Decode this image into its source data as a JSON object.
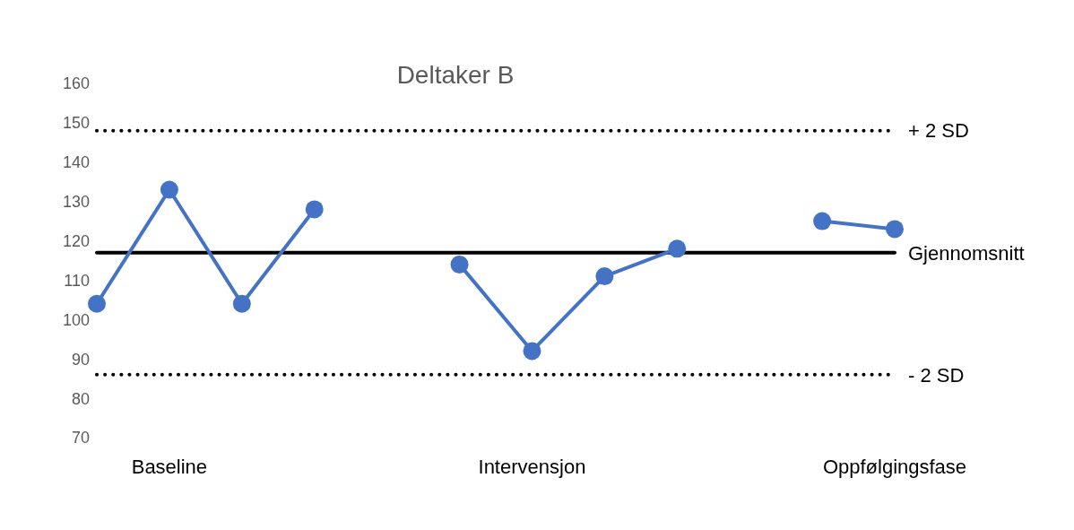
{
  "chart_data": {
    "type": "line",
    "title": "Deltaker B",
    "categories": [
      null,
      "Baseline",
      null,
      null,
      null,
      null,
      "Intervensjon",
      null,
      null,
      null,
      null,
      "Oppfølgingsfase"
    ],
    "series": [
      {
        "color": "#4472c4",
        "values": [
          104,
          133,
          104,
          128,
          null,
          114,
          92,
          111,
          118,
          null,
          125,
          123
        ]
      }
    ],
    "ylim": [
      70,
      160
    ],
    "yticks": [
      70,
      80,
      90,
      100,
      110,
      120,
      130,
      140,
      150,
      160
    ],
    "grid": false,
    "legend": false,
    "marker": "circle",
    "line_style": "solid",
    "ref_lines": [
      {
        "axis": "y",
        "value": 148,
        "label": "+ 2 SD",
        "color": "#000000",
        "line_style": "dotted"
      },
      {
        "axis": "y",
        "value": 117,
        "label": "Gjennomsnitt",
        "color": "#000000",
        "line_style": "solid"
      },
      {
        "axis": "y",
        "value": 86,
        "label": "- 2 SD",
        "color": "#000000",
        "line_style": "dotted"
      }
    ]
  }
}
